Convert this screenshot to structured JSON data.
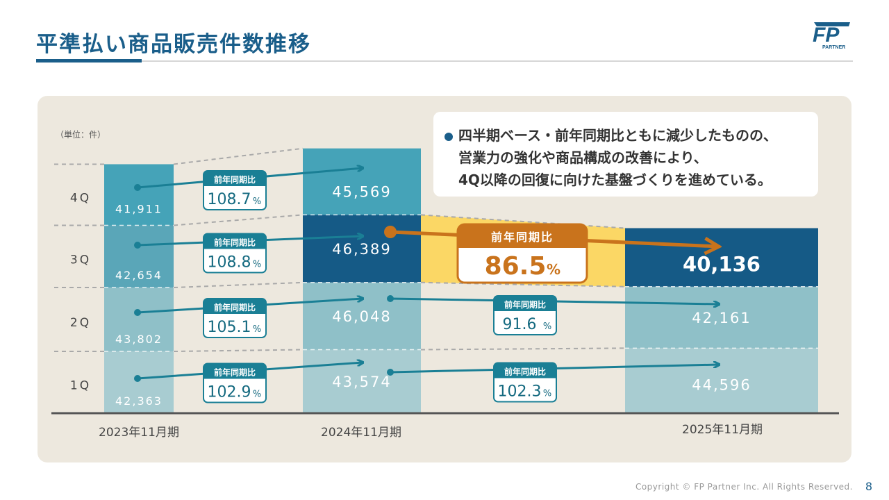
{
  "title": "平準払い商品販売件数推移",
  "logo": {
    "text": "FP",
    "sub": "PARTNER"
  },
  "footer": "Copyright © FP Partner Inc. All Rights Reserved.",
  "page_number": "8",
  "callout": {
    "bullet_lines": [
      "四半期ベース・前年同期比ともに減少したものの、",
      "営業力の強化や商品構成の改善により、",
      "4Q以降の回復に向けた基盤づくりを進めている。"
    ]
  },
  "colors": {
    "q1": "#a8ccd1",
    "q2": "#8fc0c8",
    "q3": "#5aa6b8",
    "q4": "#45a3b8",
    "q3_2024": "#155a86",
    "q3_2025": "#155a86",
    "highlight": "#fbd765",
    "arrow_teal": "#1a7f95",
    "arrow_orange": "#c9731c",
    "badge_border": "#1a7f95"
  },
  "chart_data": {
    "type": "bar",
    "stacked": true,
    "unit_label": "（単位：件）",
    "categories": [
      "2023年11月期",
      "2024年11月期",
      "2025年11月期"
    ],
    "quarters": [
      "1Q",
      "2Q",
      "3Q",
      "4Q"
    ],
    "series": [
      {
        "name": "1Q",
        "values": [
          42363,
          43574,
          44596
        ],
        "labels": [
          "42,363",
          "43,574",
          "44,596"
        ]
      },
      {
        "name": "2Q",
        "values": [
          43802,
          46048,
          42161
        ],
        "labels": [
          "43,802",
          "46,048",
          "42,161"
        ]
      },
      {
        "name": "3Q",
        "values": [
          42654,
          46389,
          40136
        ],
        "labels": [
          "42,654",
          "46,389",
          "40,136"
        ]
      },
      {
        "name": "4Q",
        "values": [
          41911,
          45569,
          null
        ],
        "labels": [
          "41,911",
          "45,569",
          ""
        ]
      }
    ],
    "yoy": {
      "label": "前年同期比",
      "pct_unit": "%",
      "2024": [
        {
          "q": "1Q",
          "value": "102.9"
        },
        {
          "q": "2Q",
          "value": "105.1"
        },
        {
          "q": "3Q",
          "value": "108.8"
        },
        {
          "q": "4Q",
          "value": "108.7"
        }
      ],
      "2025": [
        {
          "q": "1Q",
          "value": "102.3"
        },
        {
          "q": "2Q",
          "value": "91.6"
        },
        {
          "q": "3Q",
          "value": "86.5"
        }
      ]
    }
  }
}
